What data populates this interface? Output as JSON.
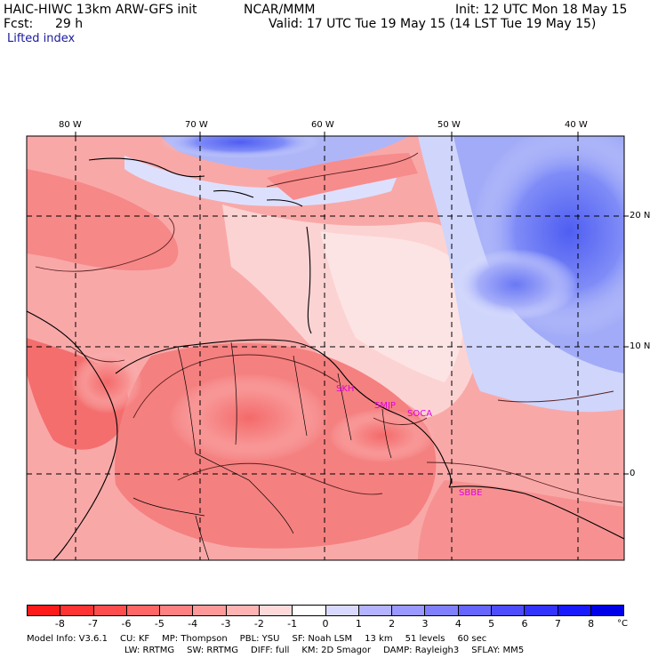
{
  "header": {
    "model": "HAIC-HIWC 13km ARW-GFS init",
    "center": "NCAR/MMM",
    "init": "Init: 12 UTC Mon 18 May 15",
    "fcst_label": "Fcst:",
    "fcst_value": "29 h",
    "valid": "Valid: 17 UTC Tue 19 May 15 (14 LST Tue 19 May 15)",
    "field": "Lifted index"
  },
  "map": {
    "lon_labels": [
      "80 W",
      "70 W",
      "60 W",
      "50 W",
      "40 W"
    ],
    "lat_labels": [
      "20 N",
      "10 N",
      "0"
    ],
    "stations": [
      "SKH",
      "SMJP",
      "SOCA",
      "SBBE"
    ]
  },
  "colorbar": {
    "unit": "°C",
    "labels": [
      "-8",
      "-7",
      "-6",
      "-5",
      "-4",
      "-3",
      "-2",
      "-1",
      "0",
      "1",
      "2",
      "3",
      "4",
      "5",
      "6",
      "7",
      "8"
    ],
    "colors": [
      "#ff1a1a",
      "#ff3333",
      "#ff4d4d",
      "#ff6666",
      "#ff8080",
      "#ff9999",
      "#ffb3b3",
      "#ffd9d9",
      "#ffffff",
      "#d9d9ff",
      "#b3b3ff",
      "#9999ff",
      "#8080ff",
      "#6666ff",
      "#4d4dff",
      "#3333ff",
      "#1a1aff",
      "#0000e6"
    ]
  },
  "footer": {
    "line1": [
      "Model Info: V3.6.1",
      "CU: KF",
      "MP: Thompson",
      "PBL: YSU",
      "SF: Noah LSM",
      "13 km",
      "51 levels",
      "60 sec"
    ],
    "line2": [
      "LW: RRTMG",
      "SW: RRTMG",
      "DIFF: full",
      "KM: 2D Smagor",
      "DAMP: Rayleigh3",
      "SFLAY: MM5"
    ]
  }
}
